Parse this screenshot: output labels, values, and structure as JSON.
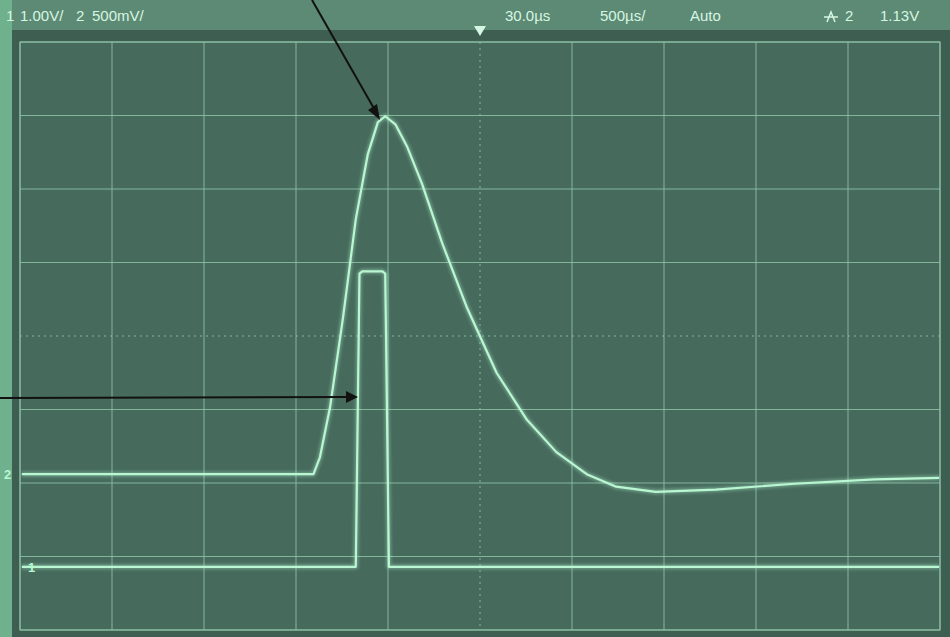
{
  "chart_data": {
    "type": "line",
    "annotations": [
      "1",
      "1.00V/",
      "2",
      "500mV/",
      "30.0µs",
      "500µs/",
      "Auto",
      "2",
      "1.13V"
    ],
    "xlim": [
      -5,
      5
    ],
    "ylim": [
      -4,
      4
    ],
    "xticks": [
      -5,
      -4,
      -3,
      -2,
      -1,
      0,
      1,
      2,
      3,
      4,
      5
    ],
    "yticks": [
      -4,
      -3,
      -2,
      -1,
      0,
      1,
      2,
      3,
      4
    ],
    "grid": true,
    "tick_labels": false,
    "series": [
      {
        "name": "2",
        "color": "#b9f7d2",
        "x": [
          -4.98,
          -1.81,
          -1.74,
          -1.63,
          -1.49,
          -1.35,
          -1.22,
          -1.11,
          -1.03,
          -0.92,
          -0.79,
          -0.63,
          -0.41,
          -0.14,
          0.18,
          0.51,
          0.83,
          1.16,
          1.48,
          1.91,
          2.56,
          3.42,
          4.29,
          4.99
        ],
        "values": [
          -1.88,
          -1.88,
          -1.65,
          -0.97,
          0.24,
          1.59,
          2.47,
          2.91,
          2.99,
          2.88,
          2.57,
          2.07,
          1.26,
          0.38,
          -0.5,
          -1.14,
          -1.58,
          -1.88,
          -2.05,
          -2.12,
          -2.09,
          -2.01,
          -1.95,
          -1.93
        ]
      },
      {
        "name": "1",
        "color": "#b9f7d2",
        "x": [
          -4.98,
          -1.35,
          -1.31,
          -1.28,
          -1.06,
          -1.03,
          -0.99,
          4.99
        ],
        "values": [
          -3.14,
          -3.14,
          0.85,
          0.88,
          0.88,
          0.85,
          -3.14,
          -3.14
        ]
      }
    ]
  }
}
